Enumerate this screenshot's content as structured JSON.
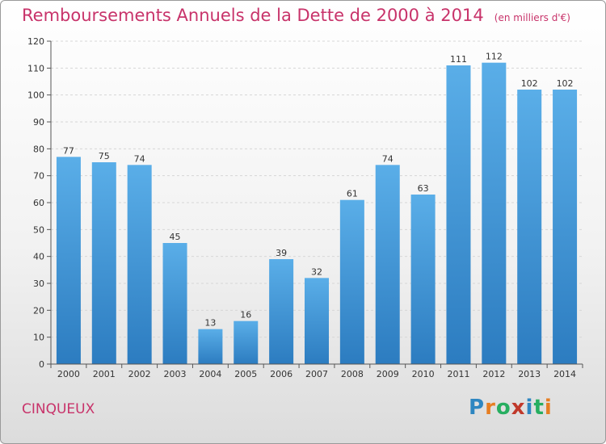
{
  "header": {
    "title": "Remboursements Annuels de la Dette de 2000 à 2014",
    "unit": "(en milliers d'€)"
  },
  "footer": {
    "commune": "CINQUEUX",
    "logo": [
      "P",
      "r",
      "o",
      "x",
      "i",
      "t",
      "i"
    ],
    "logo_colors": [
      "#2e86c1",
      "#e67e22",
      "#27ae60",
      "#c0392b",
      "#2e86c1",
      "#27ae60",
      "#e67e22"
    ]
  },
  "chart_data": {
    "type": "bar",
    "title": "Remboursements Annuels de la Dette de 2000 à 2014",
    "categories": [
      "2000",
      "2001",
      "2002",
      "2003",
      "2004",
      "2005",
      "2006",
      "2007",
      "2008",
      "2009",
      "2010",
      "2011",
      "2012",
      "2013",
      "2014"
    ],
    "values": [
      77,
      75,
      74,
      45,
      13,
      16,
      39,
      32,
      61,
      74,
      63,
      111,
      112,
      102,
      102
    ],
    "yticks": [
      0,
      10,
      20,
      30,
      40,
      50,
      60,
      70,
      80,
      90,
      100,
      110,
      120
    ],
    "ylim": [
      0,
      120
    ],
    "grid": true,
    "bar_color": "#3d92d8"
  }
}
